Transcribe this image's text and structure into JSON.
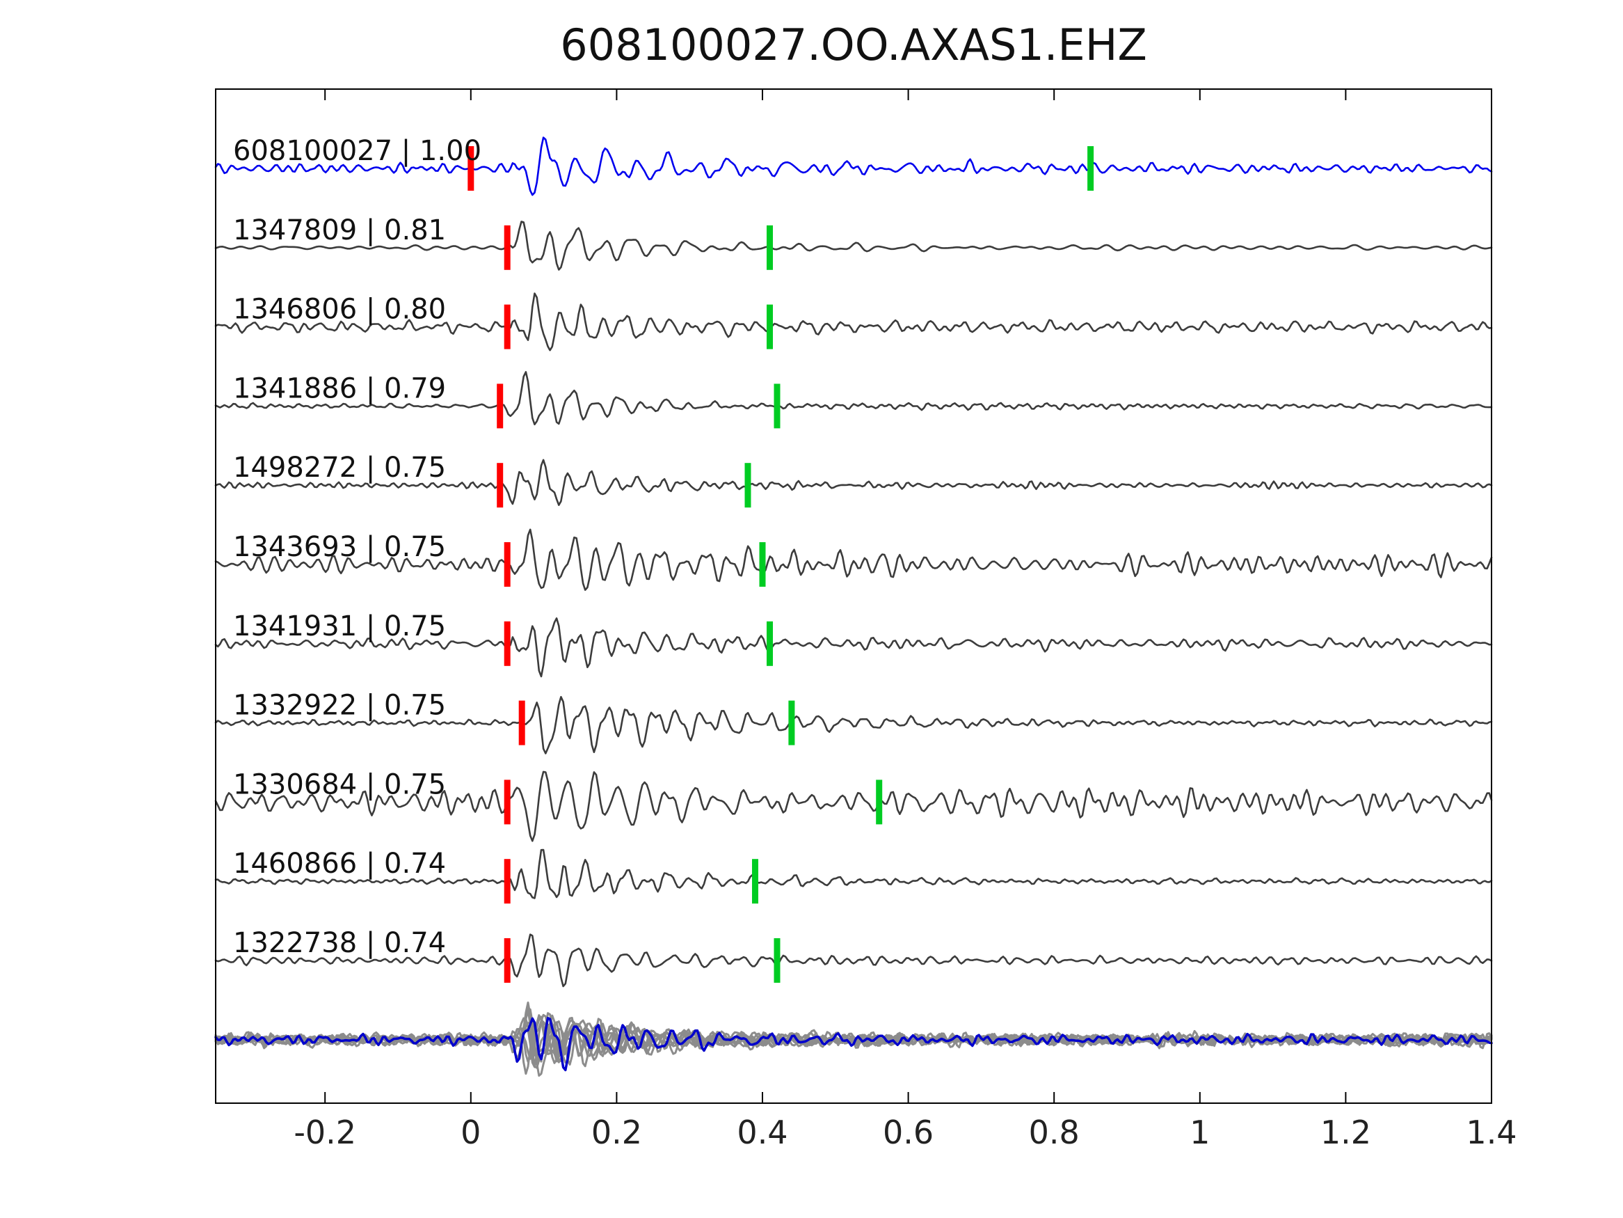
{
  "title": "608100027.OO.AXAS1.EHZ",
  "chart_data": {
    "type": "line",
    "title": "608100027.OO.AXAS1.EHZ",
    "xlabel": "",
    "ylabel": "",
    "xlim": [
      -0.35,
      1.4
    ],
    "grid": false,
    "legend": "none",
    "x_ticks": [
      {
        "value": -0.2,
        "label": "-0.2"
      },
      {
        "value": 0,
        "label": "0"
      },
      {
        "value": 0.2,
        "label": "0.2"
      },
      {
        "value": 0.4,
        "label": "0.4"
      },
      {
        "value": 0.6,
        "label": "0.6"
      },
      {
        "value": 0.8,
        "label": "0.8"
      },
      {
        "value": 1,
        "label": "1"
      },
      {
        "value": 1.2,
        "label": "1.2"
      },
      {
        "value": 1.4,
        "label": "1.4"
      }
    ],
    "colors": {
      "template_trace": "#0000ee",
      "detection_trace": "#3c3c3c",
      "stack_trace": "#8c8c8c",
      "stack_overlay": "#0000cc",
      "red_pick": "#ff0000",
      "green_pick": "#00cc22",
      "axis": "#000000",
      "tick_label": "#222222"
    },
    "traces": [
      {
        "label": "608100027 | 1.00",
        "id": "608100027",
        "correlation": 1.0,
        "style": "template",
        "red_pick": 0.0,
        "green_pick": 0.85
      },
      {
        "label": "1347809 | 0.81",
        "id": "1347809",
        "correlation": 0.81,
        "style": "detection",
        "red_pick": 0.05,
        "green_pick": 0.41
      },
      {
        "label": "1346806 | 0.80",
        "id": "1346806",
        "correlation": 0.8,
        "style": "detection",
        "red_pick": 0.05,
        "green_pick": 0.41
      },
      {
        "label": "1341886 | 0.79",
        "id": "1341886",
        "correlation": 0.79,
        "style": "detection",
        "red_pick": 0.04,
        "green_pick": 0.42
      },
      {
        "label": "1498272 | 0.75",
        "id": "1498272",
        "correlation": 0.75,
        "style": "detection",
        "red_pick": 0.04,
        "green_pick": 0.38
      },
      {
        "label": "1343693 | 0.75",
        "id": "1343693",
        "correlation": 0.75,
        "style": "detection",
        "red_pick": 0.05,
        "green_pick": 0.4
      },
      {
        "label": "1341931 | 0.75",
        "id": "1341931",
        "correlation": 0.75,
        "style": "detection",
        "red_pick": 0.05,
        "green_pick": 0.41
      },
      {
        "label": "1332922 | 0.75",
        "id": "1332922",
        "correlation": 0.75,
        "style": "detection",
        "red_pick": 0.07,
        "green_pick": 0.44
      },
      {
        "label": "1330684 | 0.75",
        "id": "1330684",
        "correlation": 0.75,
        "style": "detection",
        "red_pick": 0.05,
        "green_pick": 0.56
      },
      {
        "label": "1460866 | 0.74",
        "id": "1460866",
        "correlation": 0.74,
        "style": "detection",
        "red_pick": 0.05,
        "green_pick": 0.39
      },
      {
        "label": "1322738 | 0.74",
        "id": "1322738",
        "correlation": 0.74,
        "style": "detection",
        "red_pick": 0.05,
        "green_pick": 0.42
      }
    ],
    "stack": {
      "n_gray_traces": 10,
      "overlay_color": "blue",
      "onset": 0.055
    }
  }
}
